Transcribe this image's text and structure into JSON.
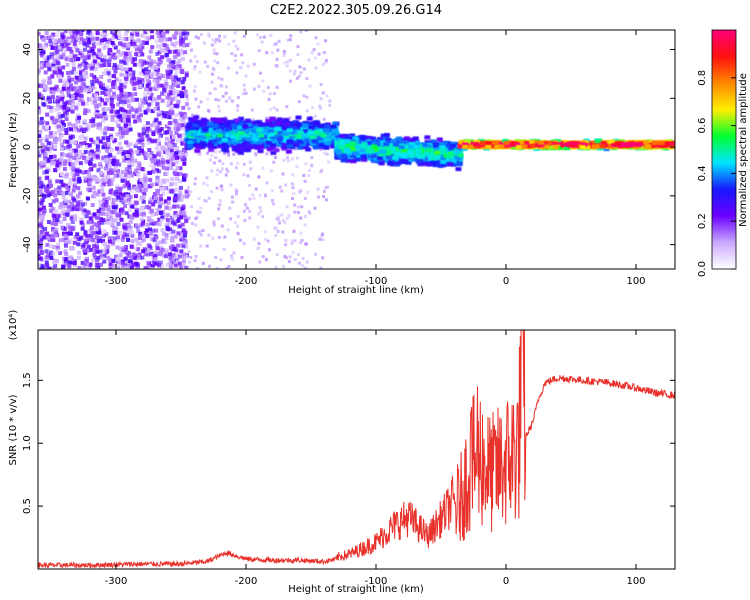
{
  "title": "C2E2.2022.305.09.26.G14",
  "chart_data": [
    {
      "type": "heatmap",
      "xlabel": "Height of straight line (km)",
      "ylabel": "Frequency (Hz)",
      "xlim": [
        -360,
        130
      ],
      "ylim": [
        -50,
        48
      ],
      "xticks": [
        -300,
        -200,
        -100,
        0,
        100
      ],
      "yticks": [
        -40,
        -20,
        0,
        20,
        40
      ],
      "colorbar": {
        "label": "Normalized spectral amplitude",
        "range": [
          0.0,
          1.0
        ],
        "ticks": [
          0.0,
          0.2,
          0.4,
          0.6,
          0.8
        ],
        "tick_labels": [
          "0.0",
          "0.2",
          "0.4",
          "0.6",
          "0.8"
        ],
        "colormap": [
          "#ffffff",
          "#c9a8ff",
          "#6a00ff",
          "#1818ff",
          "#00e5ff",
          "#00ff30",
          "#ffee00",
          "#ff8800",
          "#ff1010",
          "#ff0077"
        ]
      },
      "features": [
        {
          "x_range": [
            -360,
            -245
          ],
          "freq_range": [
            -50,
            48
          ],
          "amplitude": 0.15,
          "pattern": "broadband noise"
        },
        {
          "x_range": [
            -245,
            -130
          ],
          "freq_center": 5,
          "freq_halfwidth": 8,
          "amplitude": 0.4
        },
        {
          "x_range": [
            -130,
            -35
          ],
          "freq_center": 0,
          "freq_halfwidth": 7,
          "amplitude": 0.45
        },
        {
          "x_range": [
            -35,
            130
          ],
          "freq_center": 1,
          "freq_halfwidth": 2,
          "amplitude": 0.9
        }
      ],
      "grid": false
    },
    {
      "type": "line",
      "xlabel": "Height of straight line (km)",
      "ylabel": "SNR (10 * v/v)",
      "y_multiplier": "(x10⁴)",
      "xlim": [
        -360,
        130
      ],
      "ylim": [
        0,
        1.9
      ],
      "xticks": [
        -300,
        -200,
        -100,
        0,
        100
      ],
      "yticks": [
        0.5,
        1.0,
        1.5
      ],
      "ytick_labels": [
        "0.5",
        "1.0",
        "1.5"
      ],
      "line_color": "#e8312a",
      "grid": false,
      "x": [
        -360,
        -320,
        -280,
        -250,
        -230,
        -215,
        -200,
        -180,
        -160,
        -140,
        -120,
        -100,
        -85,
        -75,
        -60,
        -45,
        -35,
        -28,
        -20,
        -12,
        -5,
        0,
        5,
        10,
        12,
        15,
        20,
        25,
        30,
        40,
        60,
        80,
        100,
        115,
        130
      ],
      "y": [
        0.03,
        0.03,
        0.04,
        0.04,
        0.06,
        0.13,
        0.08,
        0.07,
        0.07,
        0.06,
        0.1,
        0.18,
        0.3,
        0.35,
        0.22,
        0.4,
        0.55,
        0.8,
        0.9,
        0.75,
        0.8,
        0.85,
        0.9,
        1.0,
        1.8,
        1.05,
        1.15,
        1.35,
        1.48,
        1.52,
        1.5,
        1.48,
        1.44,
        1.4,
        1.38
      ],
      "peaks": [
        {
          "x": 11,
          "y": 1.85
        },
        {
          "x": -22,
          "y": 1.45
        },
        {
          "x": -27,
          "y": 1.25
        }
      ]
    }
  ]
}
